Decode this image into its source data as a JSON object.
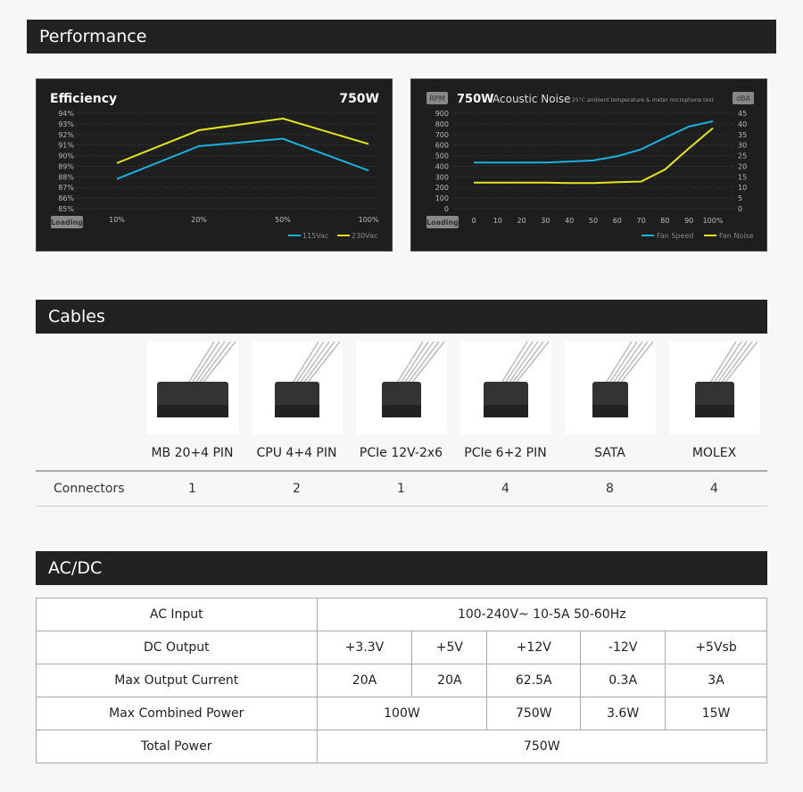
{
  "sections": {
    "performance": "Performance",
    "cables": "Cables",
    "acdc": "AC/DC"
  },
  "chart_data": [
    {
      "type": "line",
      "title": "Efficiency",
      "model": "750W",
      "badge": "Loading",
      "categories": [
        "10%",
        "20%",
        "50%",
        "100%"
      ],
      "yticks": [
        "85%",
        "86%",
        "87%",
        "88%",
        "89%",
        "90%",
        "91%",
        "92%",
        "93%",
        "94%"
      ],
      "ylim": [
        85,
        94
      ],
      "series": [
        {
          "name": "115Vac",
          "color": "#1ab0e0",
          "values": [
            87.8,
            90.9,
            91.6,
            88.6
          ]
        },
        {
          "name": "230Vac",
          "color": "#e6e619",
          "values": [
            89.3,
            92.4,
            93.5,
            91.1
          ]
        }
      ]
    },
    {
      "type": "line",
      "title": "750W",
      "subtitle": "Acoustic Noise",
      "note": "25°C ambient temperature & meter microphone test",
      "left_unit": "RPM",
      "right_unit": "dBA",
      "badge": "Loading",
      "categories": [
        "0",
        "10",
        "20",
        "30",
        "40",
        "50",
        "60",
        "70",
        "80",
        "90",
        "100%"
      ],
      "yticks_left": [
        "0",
        "100",
        "200",
        "300",
        "400",
        "500",
        "600",
        "700",
        "800",
        "900"
      ],
      "ylim_left": [
        0,
        900
      ],
      "yticks_right": [
        "0",
        "5",
        "10",
        "15",
        "20",
        "25",
        "30",
        "35",
        "40",
        "45"
      ],
      "ylim_right": [
        0,
        45
      ],
      "series": [
        {
          "name": "Fan Speed",
          "axis": "left",
          "color": "#1ab0e0",
          "values": [
            435,
            435,
            435,
            435,
            445,
            455,
            495,
            560,
            670,
            775,
            825
          ]
        },
        {
          "name": "Fan Noise",
          "axis": "right",
          "color": "#e6e619",
          "values": [
            12.3,
            12.3,
            12.3,
            12.3,
            12.1,
            12.1,
            12.5,
            12.8,
            18.5,
            28.5,
            38
          ]
        }
      ]
    }
  ],
  "cables": {
    "row_label": "Connectors",
    "items": [
      {
        "label": "MB 20+4 PIN",
        "count": "1",
        "icon": "atx-24pin-connector"
      },
      {
        "label": "CPU 4+4 PIN",
        "count": "2",
        "icon": "eps-8pin-connector"
      },
      {
        "label": "PCIe 12V-2x6",
        "count": "1",
        "icon": "12v-2x6-connector"
      },
      {
        "label": "PCIe 6+2 PIN",
        "count": "4",
        "icon": "pcie-8pin-connector"
      },
      {
        "label": "SATA",
        "count": "8",
        "icon": "sata-connector"
      },
      {
        "label": "MOLEX",
        "count": "4",
        "icon": "molex-connector"
      }
    ]
  },
  "acdc": {
    "ac_input": {
      "label": "AC Input",
      "value": "100-240V~  10-5A  50-60Hz"
    },
    "dc_output": {
      "label": "DC Output",
      "values": [
        "+3.3V",
        "+5V",
        "+12V",
        "-12V",
        "+5Vsb"
      ]
    },
    "max_current": {
      "label": "Max Output Current",
      "values": [
        "20A",
        "20A",
        "62.5A",
        "0.3A",
        "3A"
      ]
    },
    "max_combined": {
      "label": "Max Combined Power",
      "values": [
        "100W",
        "750W",
        "3.6W",
        "15W"
      ]
    },
    "total": {
      "label": "Total Power",
      "value": "750W"
    }
  }
}
